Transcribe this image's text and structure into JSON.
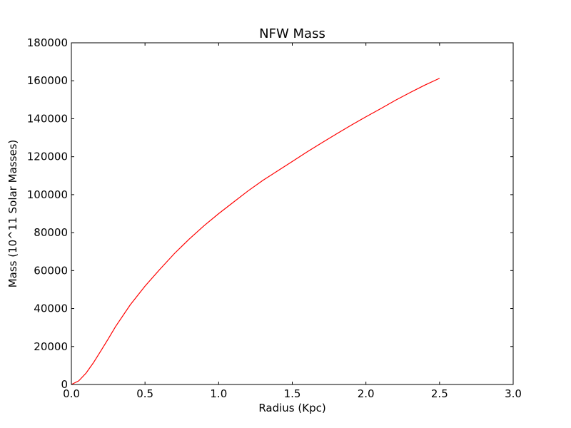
{
  "chart_data": {
    "type": "line",
    "title": "NFW Mass",
    "xlabel": "Radius (Kpc)",
    "ylabel": "Mass (10^11 Solar Masses)",
    "xlim": [
      0,
      3.0
    ],
    "ylim": [
      0,
      180000
    ],
    "x_ticks": [
      "0.0",
      "0.5",
      "1.0",
      "1.5",
      "2.0",
      "2.5",
      "3.0"
    ],
    "y_ticks": [
      "0",
      "20000",
      "40000",
      "60000",
      "80000",
      "100000",
      "120000",
      "140000",
      "160000",
      "180000"
    ],
    "grid": false,
    "series": [
      {
        "color": "#ff0000",
        "x": [
          0,
          0.05,
          0.1,
          0.15,
          0.2,
          0.25,
          0.3,
          0.4,
          0.5,
          0.6,
          0.7,
          0.8,
          0.9,
          1.0,
          1.1,
          1.2,
          1.3,
          1.4,
          1.5,
          1.6,
          1.7,
          1.8,
          1.9,
          2.0,
          2.1,
          2.2,
          2.3,
          2.4,
          2.5
        ],
        "y": [
          0,
          1900,
          6000,
          11500,
          17700,
          24000,
          30500,
          42000,
          51800,
          60600,
          69000,
          76600,
          83600,
          90000,
          96000,
          102000,
          107500,
          112500,
          117500,
          122500,
          127300,
          132000,
          136600,
          141000,
          145300,
          149700,
          153800,
          157700,
          161300
        ]
      }
    ]
  }
}
